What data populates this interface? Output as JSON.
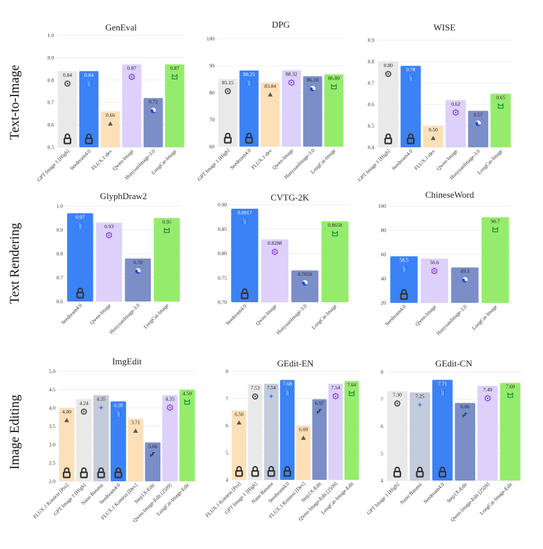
{
  "row_labels": [
    "Text-to-Image",
    "Text Rendering",
    "Image Editing"
  ],
  "colors": {
    "gpt": "#e9e9e9",
    "seedream": "#3b82f6",
    "flux": "#fde0b8",
    "qwen": "#ddd0fb",
    "hunyuan": "#7b8ec7",
    "longcat": "#95ec6c",
    "nano": "#c4cbdb",
    "step": "#7b8ec7",
    "grid": "#e6e6e6"
  },
  "chart_data": [
    {
      "type": "bar",
      "title": "GenEval",
      "ylim": [
        0.5,
        1.0
      ],
      "yticks": [
        "0.5",
        "0.6",
        "0.7",
        "0.8",
        "0.9",
        "1.0"
      ],
      "categories": [
        "GPT Image 1 [High]",
        "Seedream4.0",
        "FLUX.1-dev",
        "Qwen-Image",
        "HunyuanImage-3.0",
        "LongCat-Image"
      ],
      "values": [
        0.84,
        0.84,
        0.66,
        0.87,
        0.72,
        0.87
      ],
      "labels": [
        "0.84",
        "0.84",
        "0.66",
        "0.87",
        "0.72",
        "0.87"
      ],
      "colors": [
        "gpt",
        "seedream",
        "flux",
        "qwen",
        "hunyuan",
        "longcat"
      ],
      "icons": [
        "openai-icon",
        "bytedance-icon",
        "bfl-icon",
        "qwen-icon",
        "hunyuan-icon",
        "longcat-icon"
      ],
      "locked": [
        true,
        true,
        false,
        false,
        false,
        false
      ]
    },
    {
      "type": "bar",
      "title": "DPG",
      "ylim": [
        60,
        100
      ],
      "yticks": [
        "60",
        "70",
        "80",
        "90",
        "100"
      ],
      "categories": [
        "GPT Image 1 [High]",
        "Seedream4.0",
        "FLUX.1-dev",
        "Qwen-Image",
        "HunyuanImage-3.0",
        "LongCat-Image"
      ],
      "values": [
        85.15,
        88.25,
        83.84,
        88.32,
        86.1,
        86.8
      ],
      "labels": [
        "85.15",
        "88.25",
        "83.84",
        "88.32",
        "86.10",
        "86.80"
      ],
      "colors": [
        "gpt",
        "seedream",
        "flux",
        "qwen",
        "hunyuan",
        "longcat"
      ],
      "icons": [
        "openai-icon",
        "bytedance-icon",
        "bfl-icon",
        "qwen-icon",
        "hunyuan-icon",
        "longcat-icon"
      ],
      "locked": [
        true,
        true,
        false,
        false,
        false,
        false
      ]
    },
    {
      "type": "bar",
      "title": "WISE",
      "ylim": [
        0.4,
        0.9
      ],
      "yticks": [
        "0.4",
        "0.5",
        "0.6",
        "0.7",
        "0.8",
        "0.9"
      ],
      "categories": [
        "GPT Image 1 [High]",
        "Seedream4.0",
        "FLUX.1-dev",
        "Qwen-Image",
        "HunyuanImage-3.0",
        "LongCat-Image"
      ],
      "values": [
        0.8,
        0.78,
        0.5,
        0.62,
        0.57,
        0.65
      ],
      "labels": [
        "0.80",
        "0.78",
        "0.50",
        "0.62",
        "0.57",
        "0.65"
      ],
      "colors": [
        "gpt",
        "seedream",
        "flux",
        "qwen",
        "hunyuan",
        "longcat"
      ],
      "icons": [
        "openai-icon",
        "bytedance-icon",
        "bfl-icon",
        "qwen-icon",
        "hunyuan-icon",
        "longcat-icon"
      ],
      "locked": [
        true,
        true,
        false,
        false,
        false,
        false
      ]
    },
    {
      "type": "bar",
      "title": "GlyphDraw2",
      "ylim": [
        0.6,
        1.0
      ],
      "yticks": [
        "0.6",
        "0.7",
        "0.8",
        "0.9",
        "1.0"
      ],
      "categories": [
        "Seedream4.0",
        "Qwen-Image",
        "HunyuanImage-3.0",
        "LongCat-Image"
      ],
      "values": [
        0.97,
        0.93,
        0.78,
        0.95
      ],
      "labels": [
        "0.97",
        "0.93",
        "0.78",
        "0.95"
      ],
      "colors": [
        "seedream",
        "qwen",
        "hunyuan",
        "longcat"
      ],
      "icons": [
        "bytedance-icon",
        "qwen-icon",
        "hunyuan-icon",
        "longcat-icon"
      ],
      "locked": [
        true,
        false,
        false,
        false
      ]
    },
    {
      "type": "bar",
      "title": "CVTG-2K",
      "ylim": [
        0.7,
        0.9
      ],
      "yticks": [
        "0.70",
        "0.75",
        "0.80",
        "0.85",
        "0.90"
      ],
      "categories": [
        "Seedream4.0",
        "Qwen-Image",
        "HunyuanImage-3.0",
        "LongCat-Image"
      ],
      "values": [
        0.8917,
        0.8288,
        0.765,
        0.8658
      ],
      "labels": [
        "0.8917",
        "0.8288",
        "0.7650",
        "0.8658"
      ],
      "colors": [
        "seedream",
        "qwen",
        "hunyuan",
        "longcat"
      ],
      "icons": [
        "bytedance-icon",
        "qwen-icon",
        "hunyuan-icon",
        "longcat-icon"
      ],
      "locked": [
        true,
        false,
        false,
        false
      ]
    },
    {
      "type": "bar",
      "title": "ChineseWord",
      "ylim": [
        20,
        100
      ],
      "yticks": [
        "20",
        "40",
        "60",
        "80",
        "100"
      ],
      "categories": [
        "Seedream4.0",
        "Qwen-Image",
        "HunyuanImage-3.0",
        "LongCat-Image"
      ],
      "values": [
        58.5,
        56.6,
        49.3,
        90.7
      ],
      "labels": [
        "58.5",
        "56.6",
        "49.3",
        "90.7"
      ],
      "colors": [
        "seedream",
        "qwen",
        "hunyuan",
        "longcat"
      ],
      "icons": [
        "bytedance-icon",
        "qwen-icon",
        "hunyuan-icon",
        "longcat-icon"
      ],
      "locked": [
        true,
        false,
        false,
        false
      ]
    },
    {
      "type": "bar",
      "title": "ImgEdit",
      "ylim": [
        2.0,
        5.0
      ],
      "yticks": [
        "2.0",
        "2.5",
        "3.0",
        "3.5",
        "4.0",
        "4.5",
        "5.0"
      ],
      "categories": [
        "FLUX.1 Kontext [Pro]",
        "GPT Image 1 [High]",
        "Nano Banana",
        "Seedream4.0",
        "FLUX.1 Kontext [Dev]",
        "Step1X-Edit",
        "Qwen-Image-Edit [2509]",
        "LongCat-Image-Edit"
      ],
      "values": [
        4.0,
        4.24,
        4.35,
        4.18,
        3.71,
        3.06,
        4.35,
        4.5
      ],
      "labels": [
        "4.00",
        "4.24",
        "4.35",
        "4.18",
        "3.71",
        "3.06",
        "4.35",
        "4.50"
      ],
      "colors": [
        "flux",
        "gpt",
        "nano",
        "seedream",
        "flux",
        "step",
        "qwen",
        "longcat"
      ],
      "icons": [
        "bfl-icon",
        "openai-icon",
        "gemini-icon",
        "bytedance-icon",
        "bfl-icon",
        "stepfun-icon",
        "qwen-icon",
        "longcat-icon"
      ],
      "locked": [
        true,
        true,
        true,
        true,
        false,
        false,
        false,
        false
      ]
    },
    {
      "type": "bar",
      "title": "GEdit-EN",
      "ylim": [
        4,
        8
      ],
      "yticks": [
        "4",
        "5",
        "6",
        "7",
        "8"
      ],
      "categories": [
        "FLUX.1 Kontext [Pro]",
        "GPT Image 1 [High]",
        "Nano Banana",
        "Seedream4.0",
        "FLUX.1 Kontext [Dev]",
        "Step1X-Edit",
        "Qwen-Image-Edit [2509]",
        "LongCat-Image-Edit"
      ],
      "values": [
        6.56,
        7.53,
        7.54,
        7.68,
        6.0,
        6.97,
        7.54,
        7.64
      ],
      "labels": [
        "6.56",
        "7.53",
        "7.54",
        "7.68",
        "6.00",
        "6.97",
        "7.54",
        "7.64"
      ],
      "colors": [
        "flux",
        "gpt",
        "nano",
        "seedream",
        "flux",
        "step",
        "qwen",
        "longcat"
      ],
      "icons": [
        "bfl-icon",
        "openai-icon",
        "gemini-icon",
        "bytedance-icon",
        "bfl-icon",
        "stepfun-icon",
        "qwen-icon",
        "longcat-icon"
      ],
      "locked": [
        true,
        true,
        true,
        true,
        false,
        false,
        false,
        false
      ]
    },
    {
      "type": "bar",
      "title": "GEdit-CN",
      "ylim": [
        4,
        8
      ],
      "yticks": [
        "4",
        "5",
        "6",
        "7",
        "8"
      ],
      "categories": [
        "GPT Image 1 [High]",
        "Nano Banana",
        "Seedream4.0",
        "Step1X-Edit",
        "Qwen-Image-Edit [2509]",
        "LongCat-Image-Edit"
      ],
      "values": [
        7.3,
        7.25,
        7.71,
        6.86,
        7.49,
        7.6
      ],
      "labels": [
        "7.30",
        "7.25",
        "7.71",
        "6.86",
        "7.49",
        "7.60"
      ],
      "colors": [
        "gpt",
        "nano",
        "seedream",
        "step",
        "qwen",
        "longcat"
      ],
      "icons": [
        "openai-icon",
        "gemini-icon",
        "bytedance-icon",
        "stepfun-icon",
        "qwen-icon",
        "longcat-icon"
      ],
      "locked": [
        true,
        true,
        true,
        false,
        false,
        false
      ]
    }
  ]
}
